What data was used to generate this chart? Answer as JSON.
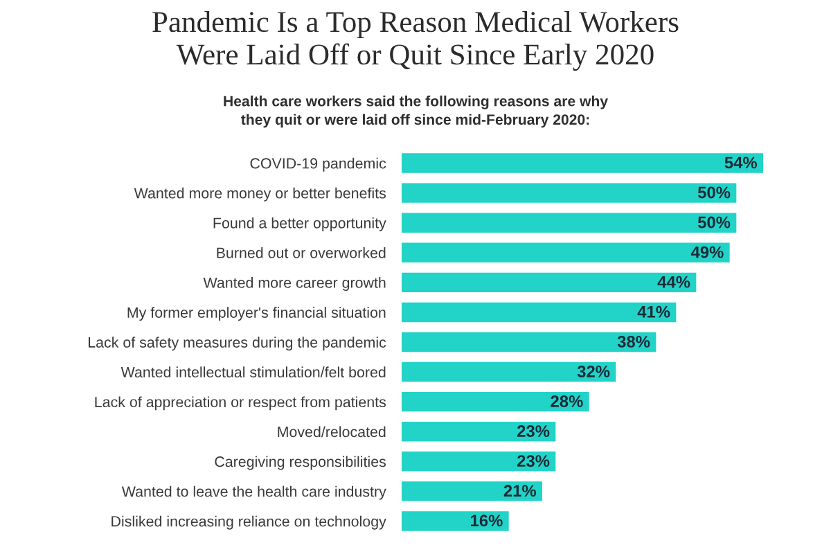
{
  "chart_data": {
    "type": "bar",
    "orientation": "horizontal",
    "title": "Pandemic Is a Top Reason Medical Workers\nWere Laid Off or Quit Since Early 2020",
    "subtitle": "Health care workers said the following reasons are why\nthey quit or were laid off since mid-February 2020:",
    "categories": [
      "COVID-19 pandemic",
      "Wanted more money or better benefits",
      "Found a better opportunity",
      "Burned out or overworked",
      "Wanted more career growth",
      "My former employer's financial situation",
      "Lack of safety measures during the pandemic",
      "Wanted intellectual stimulation/felt bored",
      "Lack of appreciation or respect from patients",
      "Moved/relocated",
      "Caregiving responsibilities",
      "Wanted to leave the health care industry",
      "Disliked increasing reliance on technology"
    ],
    "values": [
      54,
      50,
      50,
      49,
      44,
      41,
      38,
      32,
      28,
      23,
      23,
      21,
      16
    ],
    "value_labels": [
      "54%",
      "50%",
      "50%",
      "49%",
      "44%",
      "41%",
      "38%",
      "32%",
      "28%",
      "23%",
      "23%",
      "21%",
      "16%"
    ],
    "color": "#22d3c7",
    "tick_labels": "y",
    "grid": false,
    "legend": false
  }
}
